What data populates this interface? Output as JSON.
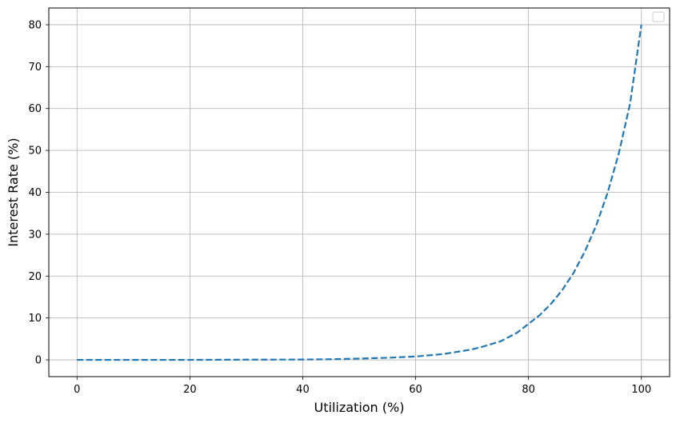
{
  "chart_data": {
    "type": "line",
    "title": "",
    "xlabel": "Utilization (%)",
    "ylabel": "Interest Rate (%)",
    "xlim": [
      -5,
      105
    ],
    "ylim": [
      -4,
      84
    ],
    "x_ticks": [
      0,
      20,
      40,
      60,
      80,
      100
    ],
    "y_ticks": [
      0,
      10,
      20,
      30,
      40,
      50,
      60,
      70,
      80
    ],
    "grid": true,
    "legend": {
      "placement": "top-right",
      "entries": []
    },
    "series": [
      {
        "color": "#1f77b4",
        "line_style": "dashed",
        "x": [
          0,
          10,
          20,
          30,
          40,
          45,
          50,
          55,
          60,
          65,
          70,
          72,
          75,
          78,
          80,
          82,
          84,
          86,
          88,
          90,
          92,
          94,
          96,
          98,
          100
        ],
        "y": [
          0.0,
          0.0,
          0.0,
          0.05,
          0.08,
          0.15,
          0.3,
          0.5,
          0.8,
          1.4,
          2.5,
          3.2,
          4.4,
          6.5,
          8.6,
          10.7,
          13.4,
          16.7,
          20.8,
          25.9,
          32.1,
          39.8,
          49.3,
          61.2,
          80.0
        ]
      }
    ]
  }
}
